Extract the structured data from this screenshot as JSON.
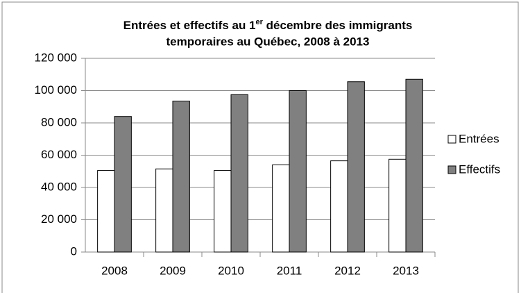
{
  "chart_data": {
    "type": "bar",
    "title": [
      "Entrées et effectifs au 1",
      "er",
      " décembre des immigrants",
      "temporaires  au Québec, 2008 à 2013"
    ],
    "categories": [
      "2008",
      "2009",
      "2010",
      "2011",
      "2012",
      "2013"
    ],
    "series": [
      {
        "name": "Entrées",
        "color": "#ffffff",
        "values": [
          50500,
          51500,
          50500,
          54000,
          56500,
          57500
        ]
      },
      {
        "name": "Effectifs",
        "color": "#808080",
        "values": [
          84000,
          93500,
          97500,
          100000,
          105500,
          107000
        ]
      }
    ],
    "ylim": [
      0,
      120000
    ],
    "yticks": [
      0,
      {
        "value": 20000,
        "label": "20 000"
      },
      {
        "value": 40000,
        "label": "40 000"
      },
      {
        "value": 60000,
        "label": "60 000"
      },
      {
        "value": 80000,
        "label": "80 000"
      },
      {
        "value": 100000,
        "label": "100 000"
      },
      {
        "value": 120000,
        "label": "120 000"
      }
    ],
    "grid": true,
    "legend": "right"
  }
}
